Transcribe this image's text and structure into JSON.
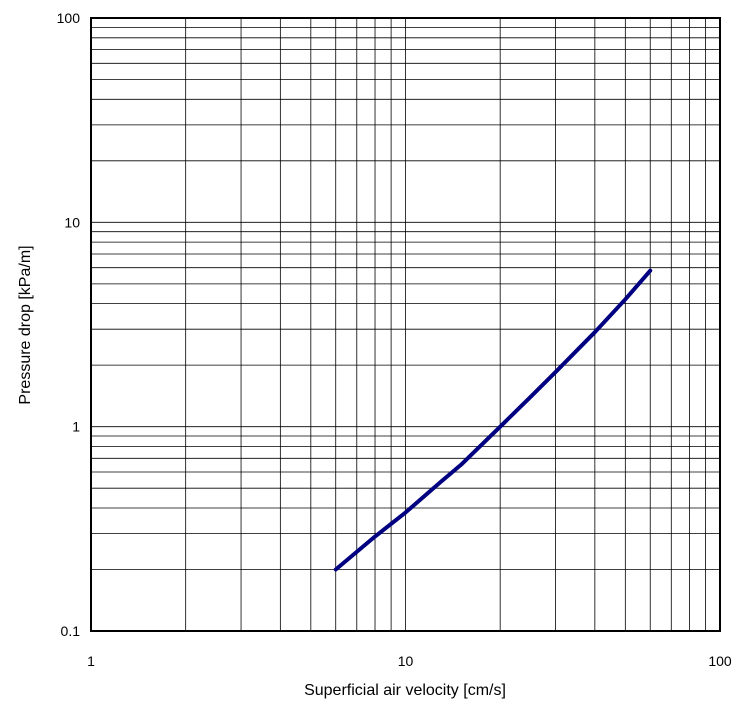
{
  "chart_data": {
    "type": "line",
    "title": "",
    "xlabel": "Superficial air velocity [cm/s]",
    "ylabel": "Pressure drop [kPa/m]",
    "xscale": "log",
    "yscale": "log",
    "xlim": [
      1,
      100
    ],
    "ylim": [
      0.1,
      100
    ],
    "x_tick_labels": [
      "1",
      "10",
      "100"
    ],
    "y_tick_labels": [
      "0.1",
      "1",
      "10",
      "100"
    ],
    "grid": true,
    "legend": "none",
    "line_color": "#000080",
    "series": [
      {
        "x": [
          6,
          8,
          10,
          13,
          15,
          20,
          25,
          30,
          40,
          50,
          60
        ],
        "y": [
          0.2,
          0.29,
          0.38,
          0.54,
          0.65,
          1.0,
          1.4,
          1.85,
          2.9,
          4.2,
          5.8
        ]
      }
    ]
  }
}
